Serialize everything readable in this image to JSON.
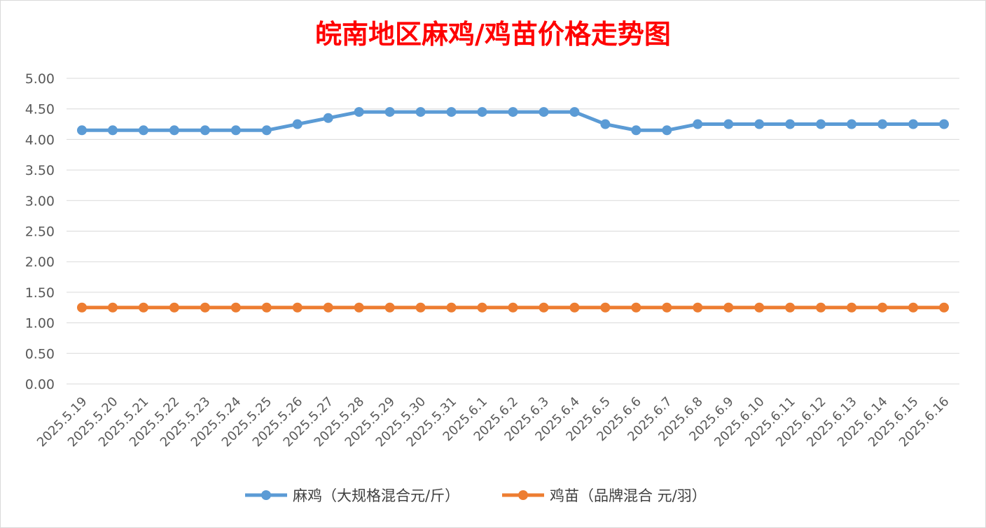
{
  "colors": {
    "title": "#ff0000",
    "series_1": "#5b9bd5",
    "series_2": "#ed7d31",
    "grid": "#d9d9d9",
    "axis_text": "#595959"
  },
  "chart_data": {
    "type": "line",
    "title": "皖南地区麻鸡/鸡苗价格走势图",
    "xlabel": "",
    "ylabel": "",
    "ylim": [
      0,
      5
    ],
    "y_ticks": [
      "0.00",
      "0.50",
      "1.00",
      "1.50",
      "2.00",
      "2.50",
      "3.00",
      "3.50",
      "4.00",
      "4.50",
      "5.00"
    ],
    "grid": true,
    "legend_position": "bottom",
    "categories": [
      "2025.5.19",
      "2025.5.20",
      "2025.5.21",
      "2025.5.22",
      "2025.5.23",
      "2025.5.24",
      "2025.5.25",
      "2025.5.26",
      "2025.5.27",
      "2025.5.28",
      "2025.5.29",
      "2025.5.30",
      "2025.5.31",
      "2025.6.1",
      "2025.6.2",
      "2025.6.3",
      "2025.6.4",
      "2025.6.5",
      "2025.6.6",
      "2025.6.7",
      "2025.6.8",
      "2025.6.9",
      "2025.6.10",
      "2025.6.11",
      "2025.6.12",
      "2025.6.13",
      "2025.6.14",
      "2025.6.15",
      "2025.6.16"
    ],
    "series": [
      {
        "name": "麻鸡（大规格混合元/斤）",
        "values": [
          4.15,
          4.15,
          4.15,
          4.15,
          4.15,
          4.15,
          4.15,
          4.25,
          4.35,
          4.45,
          4.45,
          4.45,
          4.45,
          4.45,
          4.45,
          4.45,
          4.45,
          4.25,
          4.15,
          4.15,
          4.25,
          4.25,
          4.25,
          4.25,
          4.25,
          4.25,
          4.25,
          4.25,
          4.25
        ]
      },
      {
        "name": "鸡苗（品牌混合 元/羽）",
        "values": [
          1.25,
          1.25,
          1.25,
          1.25,
          1.25,
          1.25,
          1.25,
          1.25,
          1.25,
          1.25,
          1.25,
          1.25,
          1.25,
          1.25,
          1.25,
          1.25,
          1.25,
          1.25,
          1.25,
          1.25,
          1.25,
          1.25,
          1.25,
          1.25,
          1.25,
          1.25,
          1.25,
          1.25,
          1.25
        ]
      }
    ]
  }
}
